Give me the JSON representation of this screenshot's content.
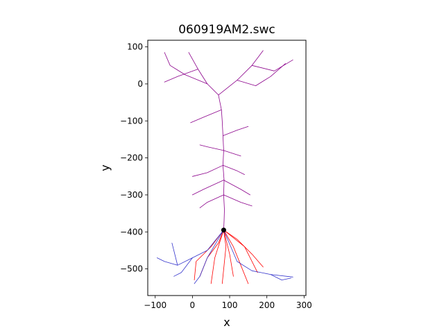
{
  "chart_data": {
    "type": "line",
    "title": "060919AM2.swc",
    "xlabel": "x",
    "ylabel": "y",
    "xlim": [
      -120,
      305
    ],
    "ylim": [
      -572,
      118
    ],
    "xticks": [
      -100,
      0,
      100,
      200,
      300
    ],
    "yticks": [
      100,
      0,
      -100,
      -200,
      -300,
      -400,
      -500
    ],
    "grid": false,
    "soma": {
      "x": 84,
      "y": -395,
      "color": "#000000"
    },
    "series": [
      {
        "color": "#8b008b",
        "segments": [
          [
            [
              84,
              -395
            ],
            [
              85,
              -370
            ],
            [
              86,
              -340
            ],
            [
              84,
              -300
            ],
            [
              85,
              -260
            ],
            [
              82,
              -220
            ],
            [
              84,
              -180
            ],
            [
              82,
              -140
            ],
            [
              80,
              -100
            ],
            [
              78,
              -70
            ],
            [
              70,
              -30
            ]
          ],
          [
            [
              70,
              -30
            ],
            [
              40,
              0
            ],
            [
              15,
              40
            ],
            [
              -10,
              85
            ]
          ],
          [
            [
              40,
              0
            ],
            [
              -20,
              25
            ],
            [
              -60,
              50
            ],
            [
              -75,
              85
            ]
          ],
          [
            [
              70,
              -30
            ],
            [
              120,
              10
            ],
            [
              160,
              50
            ],
            [
              190,
              90
            ]
          ],
          [
            [
              120,
              10
            ],
            [
              170,
              -5
            ],
            [
              210,
              20
            ],
            [
              250,
              55
            ]
          ],
          [
            [
              160,
              50
            ],
            [
              220,
              35
            ],
            [
              270,
              65
            ]
          ],
          [
            [
              15,
              40
            ],
            [
              -40,
              20
            ],
            [
              -75,
              5
            ]
          ],
          [
            [
              78,
              -70
            ],
            [
              30,
              -90
            ],
            [
              -5,
              -105
            ]
          ],
          [
            [
              82,
              -140
            ],
            [
              120,
              -125
            ],
            [
              150,
              -115
            ]
          ],
          [
            [
              84,
              -180
            ],
            [
              40,
              -170
            ],
            [
              20,
              -165
            ]
          ],
          [
            [
              84,
              -180
            ],
            [
              130,
              -195
            ]
          ],
          [
            [
              82,
              -220
            ],
            [
              40,
              -240
            ],
            [
              0,
              -250
            ]
          ],
          [
            [
              82,
              -220
            ],
            [
              120,
              -235
            ],
            [
              140,
              -245
            ]
          ],
          [
            [
              84,
              -260
            ],
            [
              30,
              -285
            ],
            [
              0,
              -300
            ]
          ],
          [
            [
              84,
              -260
            ],
            [
              130,
              -285
            ],
            [
              155,
              -300
            ]
          ],
          [
            [
              84,
              -300
            ],
            [
              40,
              -320
            ],
            [
              20,
              -335
            ]
          ],
          [
            [
              84,
              -300
            ],
            [
              130,
              -320
            ],
            [
              160,
              -330
            ]
          ]
        ]
      },
      {
        "color": "#ff0000",
        "segments": [
          [
            [
              84,
              -395
            ],
            [
              70,
              -430
            ],
            [
              40,
              -470
            ],
            [
              20,
              -520
            ]
          ],
          [
            [
              84,
              -395
            ],
            [
              90,
              -440
            ],
            [
              85,
              -490
            ],
            [
              80,
              -540
            ]
          ],
          [
            [
              84,
              -395
            ],
            [
              110,
              -440
            ],
            [
              130,
              -490
            ],
            [
              150,
              -540
            ]
          ],
          [
            [
              84,
              -395
            ],
            [
              120,
              -420
            ],
            [
              160,
              -460
            ],
            [
              190,
              -495
            ]
          ],
          [
            [
              84,
              -395
            ],
            [
              50,
              -440
            ],
            [
              10,
              -480
            ],
            [
              5,
              -530
            ]
          ],
          [
            [
              84,
              -395
            ],
            [
              100,
              -460
            ],
            [
              110,
              -520
            ]
          ],
          [
            [
              84,
              -395
            ],
            [
              140,
              -440
            ],
            [
              175,
              -510
            ]
          ],
          [
            [
              84,
              -395
            ],
            [
              60,
              -470
            ],
            [
              50,
              -540
            ]
          ]
        ]
      },
      {
        "color": "#3333cc",
        "segments": [
          [
            [
              84,
              -395
            ],
            [
              40,
              -450
            ],
            [
              0,
              -470
            ],
            [
              -40,
              -490
            ],
            [
              -75,
              -480
            ],
            [
              -95,
              -470
            ]
          ],
          [
            [
              0,
              -470
            ],
            [
              -30,
              -510
            ],
            [
              -50,
              -520
            ]
          ],
          [
            [
              84,
              -395
            ],
            [
              120,
              -480
            ],
            [
              160,
              -505
            ],
            [
              210,
              -515
            ],
            [
              270,
              -522
            ]
          ],
          [
            [
              210,
              -515
            ],
            [
              240,
              -530
            ],
            [
              265,
              -525
            ]
          ],
          [
            [
              84,
              -395
            ],
            [
              40,
              -470
            ],
            [
              20,
              -520
            ],
            [
              5,
              -540
            ]
          ],
          [
            [
              -40,
              -490
            ],
            [
              -55,
              -430
            ]
          ]
        ]
      }
    ]
  }
}
